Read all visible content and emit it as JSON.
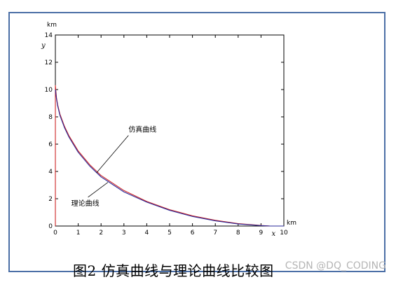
{
  "caption": "图2  仿真曲线与理论曲线比较图",
  "watermark": "CSDN @DQ_CODING",
  "colors": {
    "frame": "#4b6fa6",
    "simulation": "#cc2222",
    "theory": "#2a2a9a",
    "axis": "#000000"
  },
  "chart_data": {
    "type": "line",
    "xlim": [
      0,
      10
    ],
    "ylim": [
      0,
      14
    ],
    "xticks": [
      0,
      1,
      2,
      3,
      4,
      5,
      6,
      7,
      8,
      9,
      10
    ],
    "yticks": [
      0,
      2,
      4,
      6,
      8,
      10,
      12,
      14
    ],
    "xlabel": "x",
    "ylabel": "y",
    "x_unit": "km",
    "y_unit": "km",
    "grid": false,
    "series": [
      {
        "name": "仿真曲线",
        "color": "#cc2222",
        "x": [
          0,
          0,
          0.05,
          0.1,
          0.2,
          0.4,
          0.6,
          1.0,
          1.5,
          2.0,
          3.0,
          4.0,
          5.0,
          6.0,
          7.0,
          8.0,
          9.0,
          9.4,
          10.0
        ],
        "y": [
          0,
          10.3,
          9.4,
          8.9,
          8.2,
          7.3,
          6.6,
          5.5,
          4.5,
          3.7,
          2.6,
          1.8,
          1.2,
          0.75,
          0.42,
          0.18,
          0.04,
          0.0,
          0.0
        ]
      },
      {
        "name": "理论曲线",
        "color": "#2a2a9a",
        "x": [
          0,
          0.05,
          0.1,
          0.2,
          0.4,
          0.6,
          1.0,
          1.5,
          2.0,
          3.0,
          4.0,
          5.0,
          6.0,
          7.0,
          8.0,
          9.0,
          9.4,
          10.0
        ],
        "y": [
          10.0,
          9.3,
          8.8,
          8.1,
          7.2,
          6.5,
          5.4,
          4.4,
          3.6,
          2.5,
          1.75,
          1.15,
          0.7,
          0.38,
          0.15,
          0.03,
          0.0,
          0.0
        ]
      }
    ],
    "annotations": [
      {
        "text": "仿真曲线",
        "target_x": 1.8,
        "target_y": 3.9,
        "label_x": 3.2,
        "label_y": 6.9
      },
      {
        "text": "理论曲线",
        "target_x": 2.3,
        "target_y": 3.2,
        "label_x": 1.0,
        "label_y": 1.5
      }
    ]
  }
}
